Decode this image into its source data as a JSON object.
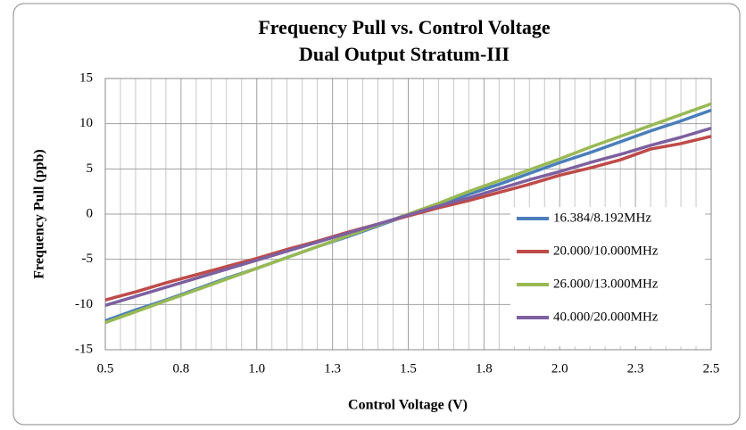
{
  "chart_data": {
    "type": "line",
    "title": "Frequency Pull vs. Control Voltage",
    "subtitle": "Dual Output Stratum-III",
    "x_label": "Control Voltage (V)",
    "y_label": "Frequency  Pull (ppb)",
    "x": [
      0.5,
      0.6,
      0.7,
      0.8,
      0.9,
      1.0,
      1.1,
      1.2,
      1.3,
      1.4,
      1.5,
      1.6,
      1.7,
      1.8,
      1.9,
      2.0,
      2.1,
      2.2,
      2.3,
      2.4,
      2.5
    ],
    "series": [
      {
        "name": "16.384/8.192MHz",
        "color": "#4a7ebb",
        "values": [
          -11.8,
          -10.6,
          -9.5,
          -8.3,
          -7.1,
          -6.0,
          -4.8,
          -3.6,
          -2.5,
          -1.3,
          -0.1,
          1.0,
          2.2,
          3.3,
          4.5,
          5.7,
          6.8,
          8.0,
          9.2,
          10.3,
          11.5
        ]
      },
      {
        "name": "20.000/10.000MHz",
        "color": "#be4b48",
        "values": [
          -9.5,
          -8.6,
          -7.6,
          -6.7,
          -5.8,
          -4.9,
          -3.9,
          -3.0,
          -2.0,
          -1.1,
          -0.2,
          0.7,
          1.5,
          2.4,
          3.3,
          4.3,
          5.1,
          6.0,
          7.2,
          7.8,
          8.6
        ]
      },
      {
        "name": "26.000/13.000MHz",
        "color": "#98b954",
        "values": [
          -12.0,
          -10.8,
          -9.6,
          -8.4,
          -7.2,
          -6.0,
          -4.8,
          -3.6,
          -2.4,
          -1.2,
          0.0,
          1.2,
          2.5,
          3.7,
          4.9,
          6.1,
          7.4,
          8.6,
          9.8,
          11.0,
          12.2
        ]
      },
      {
        "name": "40.000/20.000MHz",
        "color": "#7d60a0",
        "values": [
          -10.1,
          -9.1,
          -8.1,
          -7.1,
          -6.1,
          -5.1,
          -4.1,
          -3.1,
          -2.1,
          -1.1,
          -0.1,
          0.9,
          1.8,
          2.8,
          3.8,
          4.7,
          5.7,
          6.6,
          7.6,
          8.5,
          9.5
        ]
      }
    ],
    "xlim": [
      0.5,
      2.5
    ],
    "xticks": [
      0.5,
      {
        "value": 0.75,
        "label": "0.8"
      },
      {
        "value": 1.0,
        "label": "1.0"
      },
      {
        "value": 1.25,
        "label": "1.3"
      },
      1.5,
      {
        "value": 1.75,
        "label": "1.8"
      },
      {
        "value": 2.0,
        "label": "2.0"
      },
      {
        "value": 2.25,
        "label": "2.3"
      },
      2.5
    ],
    "ylim": [
      -15,
      15
    ],
    "yticks": [
      -15,
      -10,
      -5,
      0,
      5,
      10,
      15
    ],
    "grid": true,
    "x_minor_grid": 5,
    "legend_position": "lower right"
  }
}
